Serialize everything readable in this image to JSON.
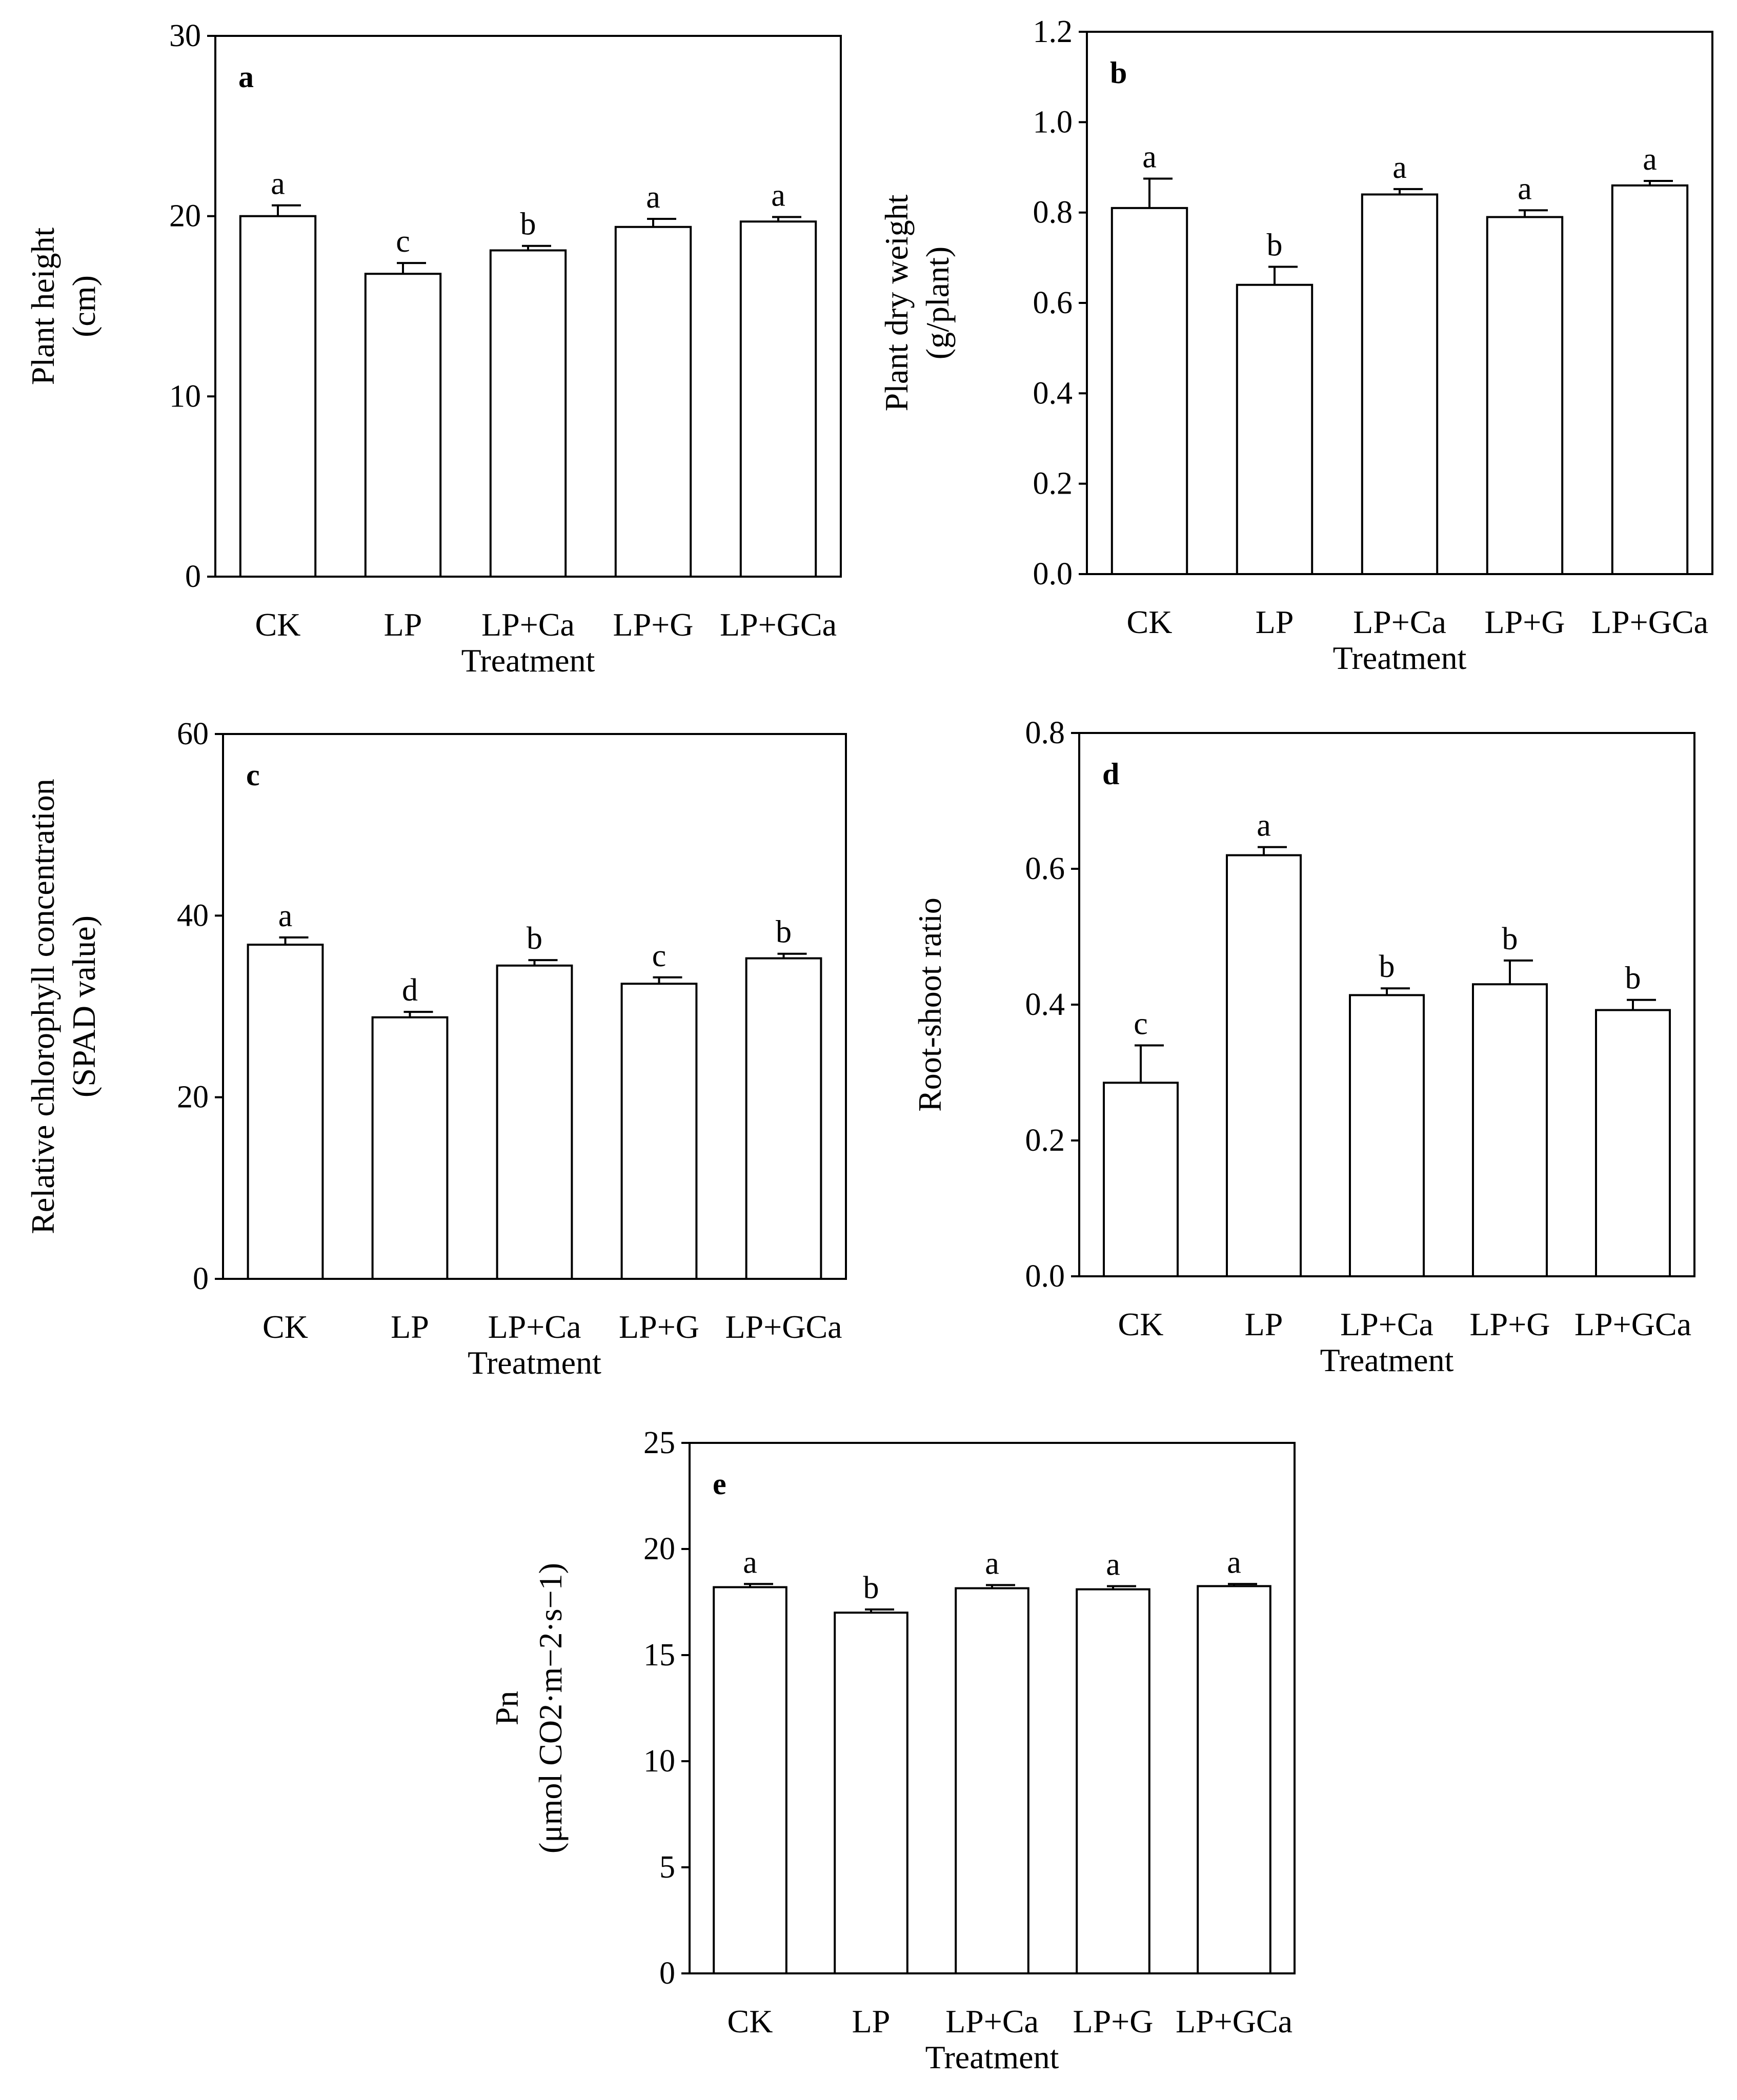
{
  "chart_data": [
    {
      "type": "bar",
      "panel": "a",
      "categories": [
        "CK",
        "LP",
        "LP+Ca",
        "LP+G",
        "LP+GCa"
      ],
      "values": [
        20.0,
        16.8,
        18.1,
        19.4,
        19.7
      ],
      "errors": [
        0.6,
        0.6,
        0.25,
        0.45,
        0.25
      ],
      "significance": [
        "a",
        "c",
        "b",
        "a",
        "a"
      ],
      "xlabel": "Treatment",
      "ylabel_lines": [
        "Plant height",
        "(cm)"
      ],
      "ylim": [
        0,
        30
      ],
      "yticks": [
        "0",
        "10",
        "20",
        "30"
      ]
    },
    {
      "type": "bar",
      "panel": "b",
      "categories": [
        "CK",
        "LP",
        "LP+Ca",
        "LP+G",
        "LP+GCa"
      ],
      "values": [
        0.81,
        0.64,
        0.84,
        0.79,
        0.86
      ],
      "errors": [
        0.065,
        0.04,
        0.012,
        0.015,
        0.01
      ],
      "significance": [
        "a",
        "b",
        "a",
        "a",
        "a"
      ],
      "xlabel": "Treatment",
      "ylabel_lines": [
        "Plant dry weight",
        "(g/plant)"
      ],
      "ylim": [
        0,
        1.2
      ],
      "yticks": [
        "0.0",
        "0.2",
        "0.4",
        "0.6",
        "0.8",
        "1.0",
        "1.2"
      ]
    },
    {
      "type": "bar",
      "panel": "c",
      "categories": [
        "CK",
        "LP",
        "LP+Ca",
        "LP+G",
        "LP+GCa"
      ],
      "values": [
        36.8,
        28.8,
        34.5,
        32.5,
        35.3
      ],
      "errors": [
        0.8,
        0.6,
        0.6,
        0.7,
        0.5
      ],
      "significance": [
        "a",
        "d",
        "b",
        "c",
        "b"
      ],
      "xlabel": "Treatment",
      "ylabel_lines": [
        "Relative chlorophyll concentration",
        "(SPAD value)"
      ],
      "ylim": [
        0,
        60
      ],
      "yticks": [
        "0",
        "20",
        "40",
        "60"
      ]
    },
    {
      "type": "bar",
      "panel": "d",
      "categories": [
        "CK",
        "LP",
        "LP+Ca",
        "LP+G",
        "LP+GCa"
      ],
      "values": [
        0.285,
        0.62,
        0.414,
        0.43,
        0.392
      ],
      "errors": [
        0.055,
        0.012,
        0.01,
        0.035,
        0.015
      ],
      "significance": [
        "c",
        "a",
        "b",
        "b",
        "b"
      ],
      "xlabel": "Treatment",
      "ylabel_lines": [
        "Root-shoot ratio"
      ],
      "ylim": [
        0,
        0.8
      ],
      "yticks": [
        "0.0",
        "0.2",
        "0.4",
        "0.6",
        "0.8"
      ]
    },
    {
      "type": "bar",
      "panel": "e",
      "categories": [
        "CK",
        "LP",
        "LP+Ca",
        "LP+G",
        "LP+GCa"
      ],
      "values": [
        18.2,
        17.0,
        18.15,
        18.1,
        18.25
      ],
      "errors": [
        0.15,
        0.15,
        0.15,
        0.15,
        0.1
      ],
      "significance": [
        "a",
        "b",
        "a",
        "a",
        "a"
      ],
      "xlabel": "Treatment",
      "ylabel_lines": [
        "Pn",
        "(μmol CO2·m−2·s−1)"
      ],
      "ylim": [
        0,
        25
      ],
      "yticks": [
        "0",
        "5",
        "10",
        "15",
        "20",
        "25"
      ]
    }
  ]
}
